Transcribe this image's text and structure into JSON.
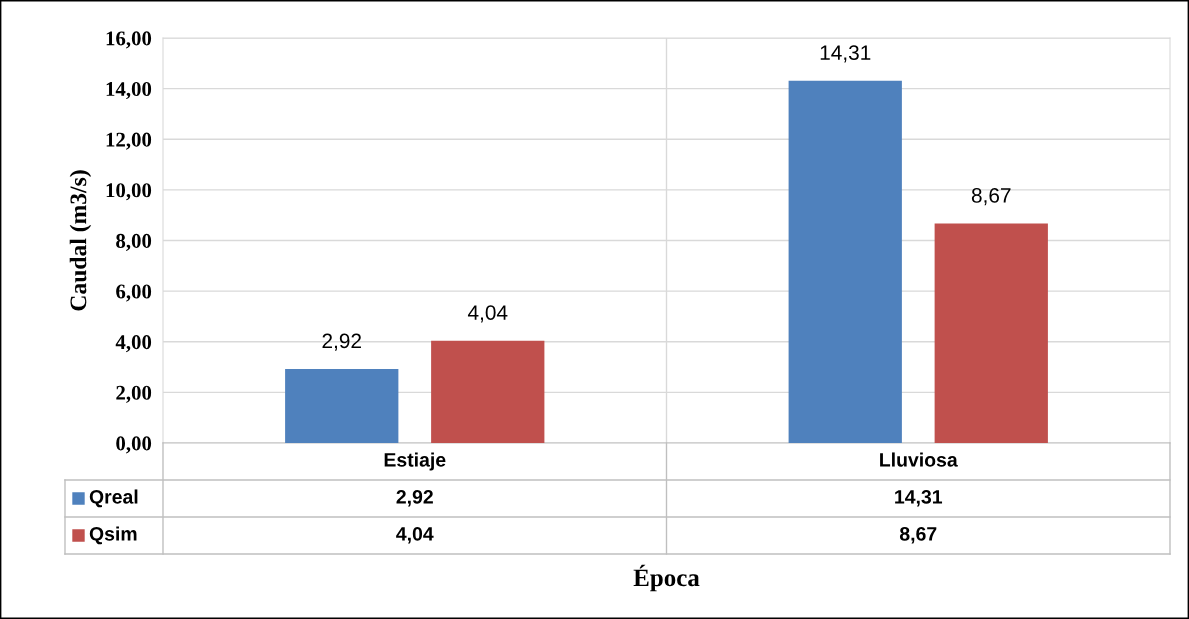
{
  "chart_data": {
    "type": "bar",
    "xlabel": "Época",
    "ylabel": "Caudal (m3/s)",
    "categories": [
      "Estiaje",
      "Lluviosa"
    ],
    "series": [
      {
        "name": "Qreal",
        "color": "#4f81bd",
        "values": [
          2.92,
          14.31
        ],
        "value_labels": [
          "2,92",
          "14,31"
        ]
      },
      {
        "name": "Qsim",
        "color": "#c0504d",
        "values": [
          4.04,
          8.67
        ],
        "value_labels": [
          "4,04",
          "8,67"
        ]
      }
    ],
    "ylim": [
      0,
      16
    ],
    "yticks": [
      {
        "value": 0,
        "label": "0,00"
      },
      {
        "value": 2,
        "label": "2,00"
      },
      {
        "value": 4,
        "label": "4,00"
      },
      {
        "value": 6,
        "label": "6,00"
      },
      {
        "value": 8,
        "label": "8,00"
      },
      {
        "value": 10,
        "label": "10,00"
      },
      {
        "value": 12,
        "label": "12,00"
      },
      {
        "value": 14,
        "label": "14,00"
      },
      {
        "value": 16,
        "label": "16,00"
      }
    ],
    "grid": "y",
    "legend": "bottom"
  }
}
